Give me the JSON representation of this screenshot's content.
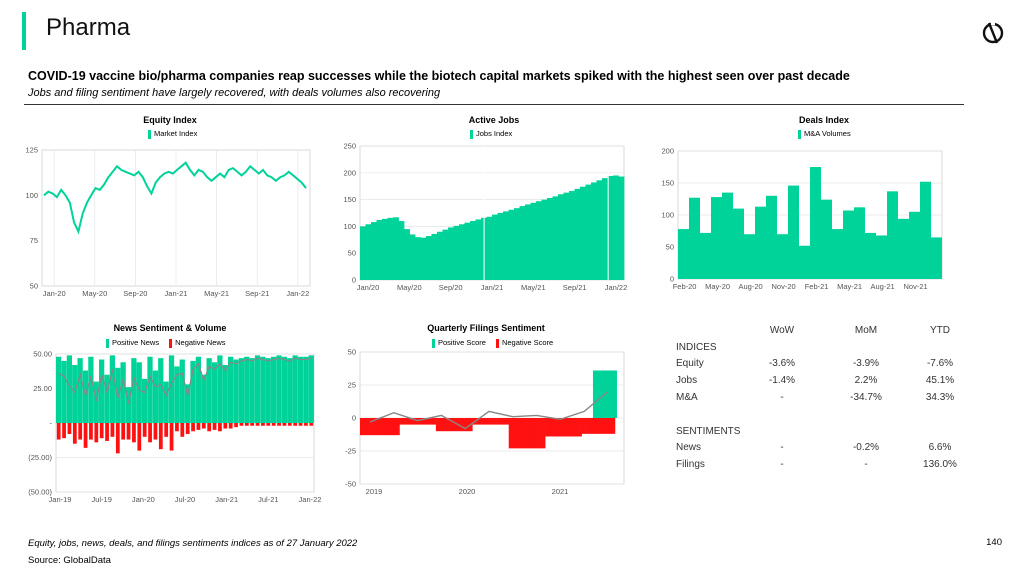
{
  "header": {
    "title": "Pharma"
  },
  "headline": "COVID-19 vaccine bio/pharma companies reap successes while the biotech capital markets spiked with the highest seen over past decade",
  "subheadline": "Jobs and filing sentiment have largely recovered, with deals volumes also recovering",
  "colors": {
    "accent": "#00d39a",
    "negative": "#ff1111",
    "line": "#888888"
  },
  "footnote": "Equity, jobs, news, deals, and filings sentiments indices as of 27 January 2022",
  "source": "Source: GlobalData",
  "page_number": "140",
  "legends": {
    "equity": "Market Index",
    "jobs": "Jobs Index",
    "deals": "M&A Volumes",
    "news_pos": "Positive News",
    "news_neg": "Negative News",
    "fil_pos": "Positive Score",
    "fil_neg": "Negative Score"
  },
  "table": {
    "headers": [
      "",
      "WoW",
      "MoM",
      "YTD"
    ],
    "rows": [
      [
        "INDICES",
        "",
        "",
        ""
      ],
      [
        "Equity",
        "-3.6%",
        "-3.9%",
        "-7.6%"
      ],
      [
        "Jobs",
        "-1.4%",
        "2.2%",
        "45.1%"
      ],
      [
        "M&A",
        "-",
        "-34.7%",
        "34.3%"
      ],
      [
        "",
        "",
        "",
        ""
      ],
      [
        "SENTIMENTS",
        "",
        "",
        ""
      ],
      [
        "News",
        "-",
        "-0.2%",
        "6.6%"
      ],
      [
        "Filings",
        "-",
        "-",
        "136.0%"
      ]
    ]
  },
  "chart_data": [
    {
      "id": "equity",
      "type": "line",
      "title": "Equity Index",
      "series_name": "Market Index",
      "ylim": [
        50,
        125
      ],
      "yticks": [
        "50",
        "75",
        "100",
        "125"
      ],
      "xticks": [
        "Jan-20",
        "May-20",
        "Sep-20",
        "Jan-21",
        "May-21",
        "Sep-21",
        "Jan-22"
      ],
      "values": [
        100,
        102,
        101,
        99,
        103,
        100,
        96,
        85,
        80,
        90,
        96,
        100,
        104,
        103,
        106,
        110,
        113,
        116,
        114,
        113,
        112,
        111,
        113,
        110,
        105,
        101,
        107,
        110,
        112,
        113,
        112,
        114,
        116,
        118,
        114,
        111,
        114,
        113,
        110,
        108,
        110,
        112,
        110,
        114,
        115,
        113,
        111,
        113,
        116,
        114,
        112,
        114,
        111,
        110,
        108,
        110,
        111,
        113,
        111,
        109,
        107,
        104
      ]
    },
    {
      "id": "jobs",
      "type": "area",
      "title": "Active Jobs",
      "series_name": "Jobs Index",
      "ylim": [
        0,
        250
      ],
      "yticks": [
        "0",
        "50",
        "100",
        "150",
        "200",
        "250"
      ],
      "xticks": [
        "Jan/20",
        "May/20",
        "Sep/20",
        "Jan/21",
        "May/21",
        "Sep/21",
        "Jan/22"
      ],
      "values": [
        100,
        104,
        108,
        112,
        114,
        116,
        117,
        110,
        95,
        85,
        80,
        79,
        82,
        86,
        90,
        94,
        98,
        101,
        104,
        107,
        110,
        113,
        116,
        118,
        122,
        125,
        128,
        131,
        134,
        138,
        141,
        144,
        147,
        150,
        153,
        156,
        160,
        163,
        166,
        170,
        174,
        178,
        182,
        186,
        190,
        194,
        195,
        193
      ]
    },
    {
      "id": "deals",
      "type": "bar",
      "title": "Deals Index",
      "series_name": "M&A Volumes",
      "ylim": [
        0,
        200
      ],
      "yticks": [
        "0",
        "50",
        "100",
        "150",
        "200"
      ],
      "xticks": [
        "Feb-20",
        "May-20",
        "Aug-20",
        "Nov-20",
        "Feb-21",
        "May-21",
        "Aug-21",
        "Nov-21"
      ],
      "values": [
        78,
        127,
        72,
        128,
        135,
        110,
        70,
        113,
        130,
        70,
        146,
        52,
        175,
        124,
        78,
        107,
        112,
        72,
        68,
        137,
        94,
        105,
        152,
        65
      ]
    },
    {
      "id": "news",
      "type": "bar",
      "title": "News Sentiment & Volume",
      "series": [
        "Positive News",
        "Negative News"
      ],
      "ylim": [
        -50,
        50
      ],
      "yticks": [
        "(50.00)",
        "(25.00)",
        "-",
        "25.00",
        "50.00"
      ],
      "xticks": [
        "Jan-19",
        "Jul-19",
        "Jan-20",
        "Jul-20",
        "Jan-21",
        "Jul-21",
        "Jan-22"
      ],
      "positive": [
        48,
        45,
        49,
        42,
        47,
        38,
        48,
        30,
        46,
        35,
        49,
        40,
        44,
        26,
        47,
        44,
        32,
        48,
        38,
        47,
        30,
        49,
        41,
        46,
        28,
        45,
        48,
        35,
        47,
        44,
        49,
        42,
        48,
        46,
        47,
        48,
        47,
        49,
        48,
        47,
        48,
        49,
        48,
        47,
        49,
        48,
        48,
        49
      ],
      "negative": [
        -12,
        -11,
        -8,
        -15,
        -12,
        -18,
        -12,
        -14,
        -11,
        -13,
        -10,
        -22,
        -12,
        -12,
        -14,
        -20,
        -10,
        -14,
        -12,
        -19,
        -10,
        -20,
        -6,
        -10,
        -8,
        -6,
        -5,
        -4,
        -6,
        -5,
        -6,
        -4,
        -4,
        -3,
        -2,
        -2,
        -2,
        -2,
        -2,
        -2,
        -2,
        -2,
        -2,
        -2,
        -2,
        -2,
        -2,
        -2
      ],
      "net": [
        36,
        34,
        27,
        22,
        35,
        20,
        34,
        16,
        35,
        22,
        39,
        18,
        32,
        14,
        33,
        24,
        22,
        34,
        26,
        28,
        20,
        29,
        35,
        36,
        20,
        39,
        43,
        31,
        41,
        39,
        43,
        38,
        44,
        43,
        45,
        46,
        45,
        47,
        46,
        45,
        46,
        47,
        46,
        45,
        47,
        46,
        46,
        47
      ]
    },
    {
      "id": "filings",
      "type": "bar",
      "title": "Quarterly Filings Sentiment",
      "series": [
        "Positive Score",
        "Negative Score"
      ],
      "ylim": [
        -50,
        50
      ],
      "yticks": [
        "-50",
        "-25",
        "0",
        "25",
        "50"
      ],
      "xticks": [
        "2019",
        "2020",
        "2021"
      ],
      "positive": [
        0,
        0,
        0,
        0,
        0,
        0,
        0,
        0,
        0,
        0,
        0,
        0,
        0,
        0,
        0,
        0,
        0,
        0,
        0,
        0,
        0,
        0,
        0,
        0,
        0,
        0,
        0,
        0,
        0,
        0,
        0,
        0,
        0,
        0,
        0,
        0,
        0,
        0,
        0,
        0,
        0,
        0,
        0,
        0,
        0,
        0,
        0,
        0,
        0,
        0,
        0,
        0,
        0,
        0,
        0,
        0,
        0,
        0,
        0,
        0,
        0,
        0,
        0,
        0,
        0,
        0,
        0,
        0,
        0,
        0,
        0,
        0,
        0,
        0,
        0,
        0,
        0,
        0,
        0,
        0,
        0,
        0,
        0,
        0,
        36
      ],
      "negative": [
        -13,
        -13,
        -13,
        -13,
        -13,
        -13,
        -13,
        -13,
        -13,
        -13,
        -13,
        -13,
        -13,
        -5,
        -5,
        -5,
        -5,
        -5,
        -5,
        -5,
        -5,
        -5,
        -5,
        -5,
        -5,
        -10,
        -10,
        -10,
        -10,
        -10,
        -10,
        -10,
        -10,
        -10,
        -10,
        -10,
        -10,
        -5,
        -5,
        -5,
        -5,
        -5,
        -5,
        -5,
        -5,
        -5,
        -5,
        -5,
        -5,
        -23,
        -23,
        -23,
        -23,
        -23,
        -23,
        -23,
        -23,
        -23,
        -23,
        -23,
        -23,
        -14,
        -14,
        -14,
        -14,
        -14,
        -14,
        -14,
        -14,
        -14,
        -14,
        -14,
        -14,
        -12,
        -12,
        -12,
        -12,
        -12,
        -12,
        -12,
        -12,
        -12,
        -12,
        -12,
        0
      ],
      "net_points": [
        -3,
        4,
        -2,
        2,
        -8,
        5,
        1,
        2,
        -1,
        5,
        20
      ]
    }
  ]
}
